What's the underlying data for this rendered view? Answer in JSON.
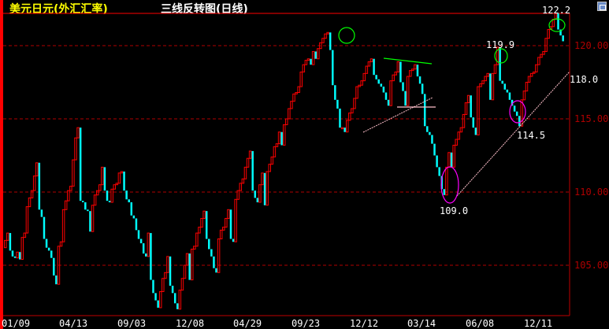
{
  "header": {
    "instrument": "美元日元(外汇汇率)",
    "chart_title": "三线反转图(日线)",
    "window_icon": "restore-window-icon"
  },
  "colors": {
    "up": "#ff0000",
    "down": "#00ffff",
    "grid": "#b00000",
    "axis_label": "#b00000",
    "trendline": "#ffc0cb",
    "resistance": "#00ff00",
    "highlight_green": "#00ff00",
    "highlight_magenta": "#ff00ff"
  },
  "chart_data": {
    "type": "three-line-break",
    "title": "三线反转图(日线)",
    "ylim": [
      101.6,
      122.2
    ],
    "grid": true,
    "y_ticks": [
      "120.00",
      "115.00",
      "110.00",
      "105.00"
    ],
    "y_tick_values": [
      120,
      115,
      110,
      105
    ],
    "x_tick_labels": [
      "01/09",
      "04/13",
      "09/03",
      "12/08",
      "04/29",
      "09/23",
      "12/12",
      "03/14",
      "06/08",
      "12/11"
    ],
    "closes": [
      106.2,
      106.7,
      107.2,
      106.0,
      105.6,
      105.5,
      105.9,
      105.4,
      106.9,
      107.2,
      109.0,
      109.6,
      110.1,
      111.1,
      112.0,
      108.8,
      108.3,
      106.8,
      106.2,
      106.0,
      105.5,
      104.3,
      103.7,
      106.3,
      106.6,
      108.8,
      109.4,
      110.1,
      110.4,
      112.2,
      113.7,
      114.4,
      109.4,
      109.3,
      108.8,
      108.7,
      107.3,
      109.1,
      109.8,
      110.1,
      110.5,
      111.7,
      110.1,
      109.4,
      109.3,
      110.2,
      110.5,
      110.6,
      111.3,
      111.4,
      110.1,
      109.5,
      109.3,
      108.4,
      108.2,
      107.4,
      106.8,
      106.5,
      105.8,
      105.6,
      107.2,
      104.0,
      103.1,
      102.6,
      102.1,
      103.2,
      104.1,
      104.5,
      105.6,
      103.6,
      103.1,
      102.4,
      102.0,
      103.3,
      104.1,
      105.0,
      105.8,
      104.0,
      106.1,
      106.3,
      107.2,
      107.6,
      108.2,
      108.7,
      106.8,
      106.1,
      105.6,
      104.8,
      104.5,
      106.8,
      107.4,
      107.6,
      108.2,
      108.8,
      106.8,
      106.6,
      109.5,
      110.1,
      110.6,
      110.9,
      111.7,
      112.3,
      112.8,
      110.1,
      109.6,
      109.3,
      110.5,
      111.3,
      109.1,
      111.4,
      111.9,
      112.4,
      113.1,
      113.3,
      114.1,
      113.2,
      114.6,
      115.0,
      115.7,
      116.2,
      116.7,
      116.8,
      117.2,
      118.2,
      118.7,
      119.0,
      119.1,
      118.7,
      119.6,
      119.1,
      119.8,
      120.2,
      120.5,
      120.8,
      120.9,
      119.7,
      117.3,
      116.3,
      115.7,
      114.4,
      114.4,
      114.1,
      114.9,
      115.4,
      115.7,
      116.4,
      117.2,
      117.3,
      117.6,
      118.1,
      118.6,
      118.9,
      119.1,
      118.0,
      117.7,
      117.4,
      117.2,
      116.8,
      116.3,
      115.9,
      117.6,
      118.0,
      118.2,
      118.9,
      117.5,
      116.9,
      115.9,
      117.9,
      118.3,
      118.4,
      118.7,
      117.9,
      117.4,
      116.7,
      114.5,
      114.1,
      113.9,
      113.3,
      112.5,
      111.7,
      111.1,
      110.2,
      109.8,
      111.7,
      112.7,
      111.7,
      113.2,
      113.6,
      114.1,
      114.4,
      115.3,
      116.1,
      116.6,
      115.1,
      114.4,
      113.9,
      117.2,
      117.4,
      117.6,
      117.9,
      118.1,
      116.3,
      118.1,
      118.7,
      119.9,
      117.6,
      117.4,
      117.0,
      116.8,
      116.3,
      115.9,
      115.5,
      115.2,
      114.5,
      116.3,
      116.9,
      117.5,
      117.9,
      118.1,
      118.2,
      118.7,
      119.2,
      119.4,
      119.6,
      120.5,
      121.1,
      121.3,
      121.8,
      122.2,
      121.1,
      120.7,
      120.3
    ],
    "annotations": [
      {
        "label": "122.2",
        "kind": "high"
      },
      {
        "label": "119.9",
        "kind": "high"
      },
      {
        "label": "118.0",
        "kind": "trendline-value"
      },
      {
        "label": "114.5",
        "kind": "low"
      },
      {
        "label": "109.0",
        "kind": "low"
      }
    ]
  }
}
